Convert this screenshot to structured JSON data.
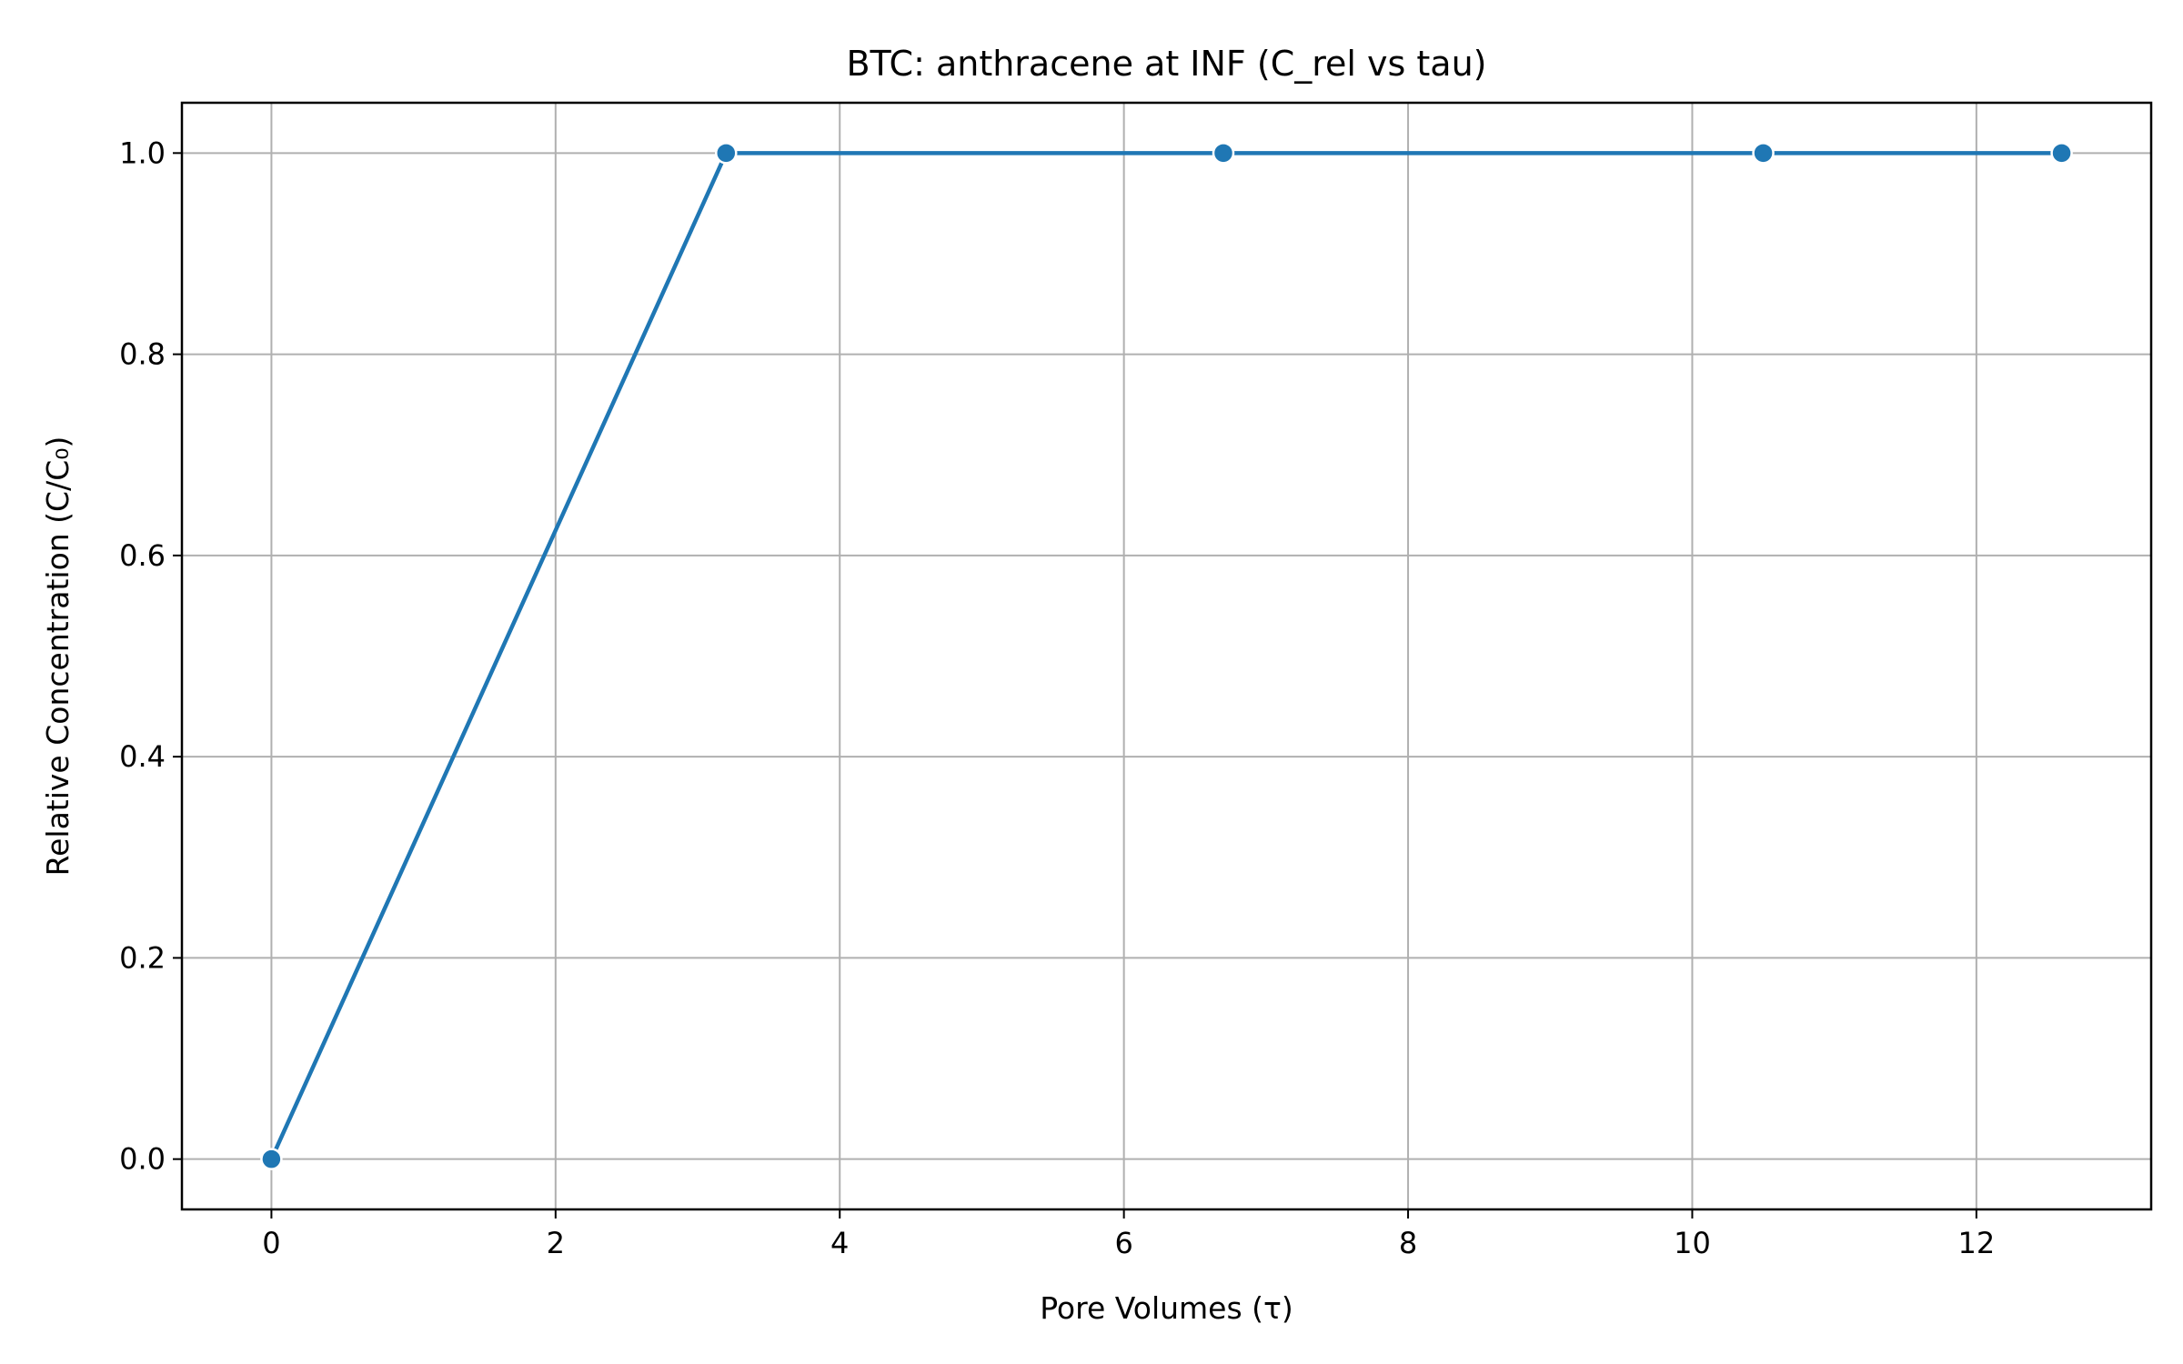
{
  "chart_data": {
    "type": "line",
    "title": "BTC: anthracene at INF (C_rel vs tau)",
    "xlabel": "Pore Volumes (τ)",
    "ylabel": "Relative Concentration (C/C₀)",
    "xlim": [
      -0.63,
      13.23
    ],
    "ylim": [
      -0.05,
      1.05
    ],
    "xticks": [
      0,
      2,
      4,
      6,
      8,
      10,
      12
    ],
    "yticks": [
      0.0,
      0.2,
      0.4,
      0.6,
      0.8,
      1.0
    ],
    "xtick_labels": [
      "0",
      "2",
      "4",
      "6",
      "8",
      "10",
      "12"
    ],
    "ytick_labels": [
      "0.0",
      "0.2",
      "0.4",
      "0.6",
      "0.8",
      "1.0"
    ],
    "grid": true,
    "series": [
      {
        "x": [
          0.0,
          3.2,
          6.7,
          10.5,
          12.6
        ],
        "y": [
          0.0,
          1.0,
          1.0,
          1.0,
          1.0
        ],
        "color": "#1f77b4",
        "marker": "circle"
      }
    ]
  }
}
